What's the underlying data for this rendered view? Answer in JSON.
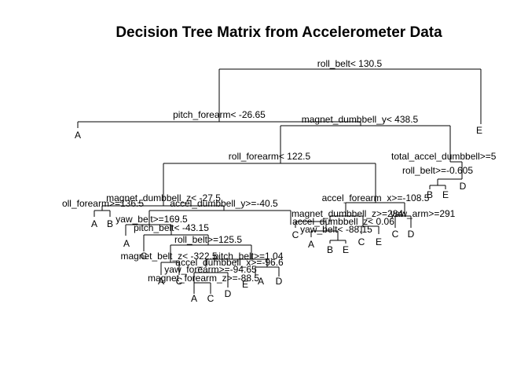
{
  "title": "Decision Tree Matrix from Accelerometer Data",
  "splits": [
    {
      "id": "root",
      "text": "roll_belt< 130.5"
    },
    {
      "id": "s-pitch-forearm",
      "text": "pitch_forearm< -26.65"
    },
    {
      "id": "s-magnet-dumbbell-y",
      "text": "magnet_dumbbell_y< 438.5"
    },
    {
      "id": "s-roll-forearm-1225",
      "text": "roll_forearm< 122.5"
    },
    {
      "id": "s-total-accel-dumbbell",
      "text": "total_accel_dumbbell>=5"
    },
    {
      "id": "s-roll-belt-0605",
      "text": "roll_belt>=-0.605"
    },
    {
      "id": "s-magnet-dumbbell-z",
      "text": "magnet_dumbbell_z< -27.5"
    },
    {
      "id": "s-accel-dumbbell-y",
      "text": "accel_dumbbell_y>=-40.5"
    },
    {
      "id": "s-accel-forearm-x",
      "text": "accel_forearm_x>=-108.5"
    },
    {
      "id": "s-roll-forearm-1365",
      "text": "oll_forearm>=136.5"
    },
    {
      "id": "s-yaw-belt-1695",
      "text": "yaw_belt>=169.5"
    },
    {
      "id": "s-magnet-dumbbell-z2",
      "text": "magnet_dumbbell_z>=284"
    },
    {
      "id": "s-yaw-arm",
      "text": "yaw_arm>=291"
    },
    {
      "id": "s-pitch-belt-4315",
      "text": "pitch_belt< -43.15"
    },
    {
      "id": "s-accel-dumbbell-z",
      "text": "accel_dumbbell_z< 0.06"
    },
    {
      "id": "s-yaw-belt-8815",
      "text": "yaw_belt< -88.15"
    },
    {
      "id": "s-roll-belt-1255",
      "text": "roll_belt>=125.5"
    },
    {
      "id": "s-magnet-belt-z",
      "text": "magnet_belt_z< -322.5"
    },
    {
      "id": "s-pitch-belt-104",
      "text": "pitch_belt>=1.04"
    },
    {
      "id": "s-accel-dumbbell-x",
      "text": "accel_dumbbell_x>=-96.6"
    },
    {
      "id": "s-yaw-forearm",
      "text": "yaw_forearm>=-94.65"
    },
    {
      "id": "s-magnet-forearm-z",
      "text": "magnet_forearm_z>=-88.5"
    }
  ],
  "leaves": [
    {
      "id": "leaf-1",
      "text": "A"
    },
    {
      "id": "leaf-2",
      "text": "E"
    },
    {
      "id": "leaf-3",
      "text": "B"
    },
    {
      "id": "leaf-4",
      "text": "E"
    },
    {
      "id": "leaf-5",
      "text": "D"
    },
    {
      "id": "leaf-6",
      "text": "A"
    },
    {
      "id": "leaf-7",
      "text": "B"
    },
    {
      "id": "leaf-8",
      "text": "A"
    },
    {
      "id": "leaf-9",
      "text": "C"
    },
    {
      "id": "leaf-10",
      "text": "C"
    },
    {
      "id": "leaf-11",
      "text": "D"
    },
    {
      "id": "leaf-12",
      "text": "C"
    },
    {
      "id": "leaf-13",
      "text": "A"
    },
    {
      "id": "leaf-14",
      "text": "B"
    },
    {
      "id": "leaf-15",
      "text": "E"
    },
    {
      "id": "leaf-16",
      "text": "C"
    },
    {
      "id": "leaf-17",
      "text": "E"
    },
    {
      "id": "leaf-18",
      "text": "A"
    },
    {
      "id": "leaf-19",
      "text": "C"
    },
    {
      "id": "leaf-20",
      "text": "E"
    },
    {
      "id": "leaf-21",
      "text": "A"
    },
    {
      "id": "leaf-22",
      "text": "D"
    },
    {
      "id": "leaf-23",
      "text": "D"
    },
    {
      "id": "leaf-24",
      "text": "A"
    },
    {
      "id": "leaf-25",
      "text": "C"
    }
  ]
}
